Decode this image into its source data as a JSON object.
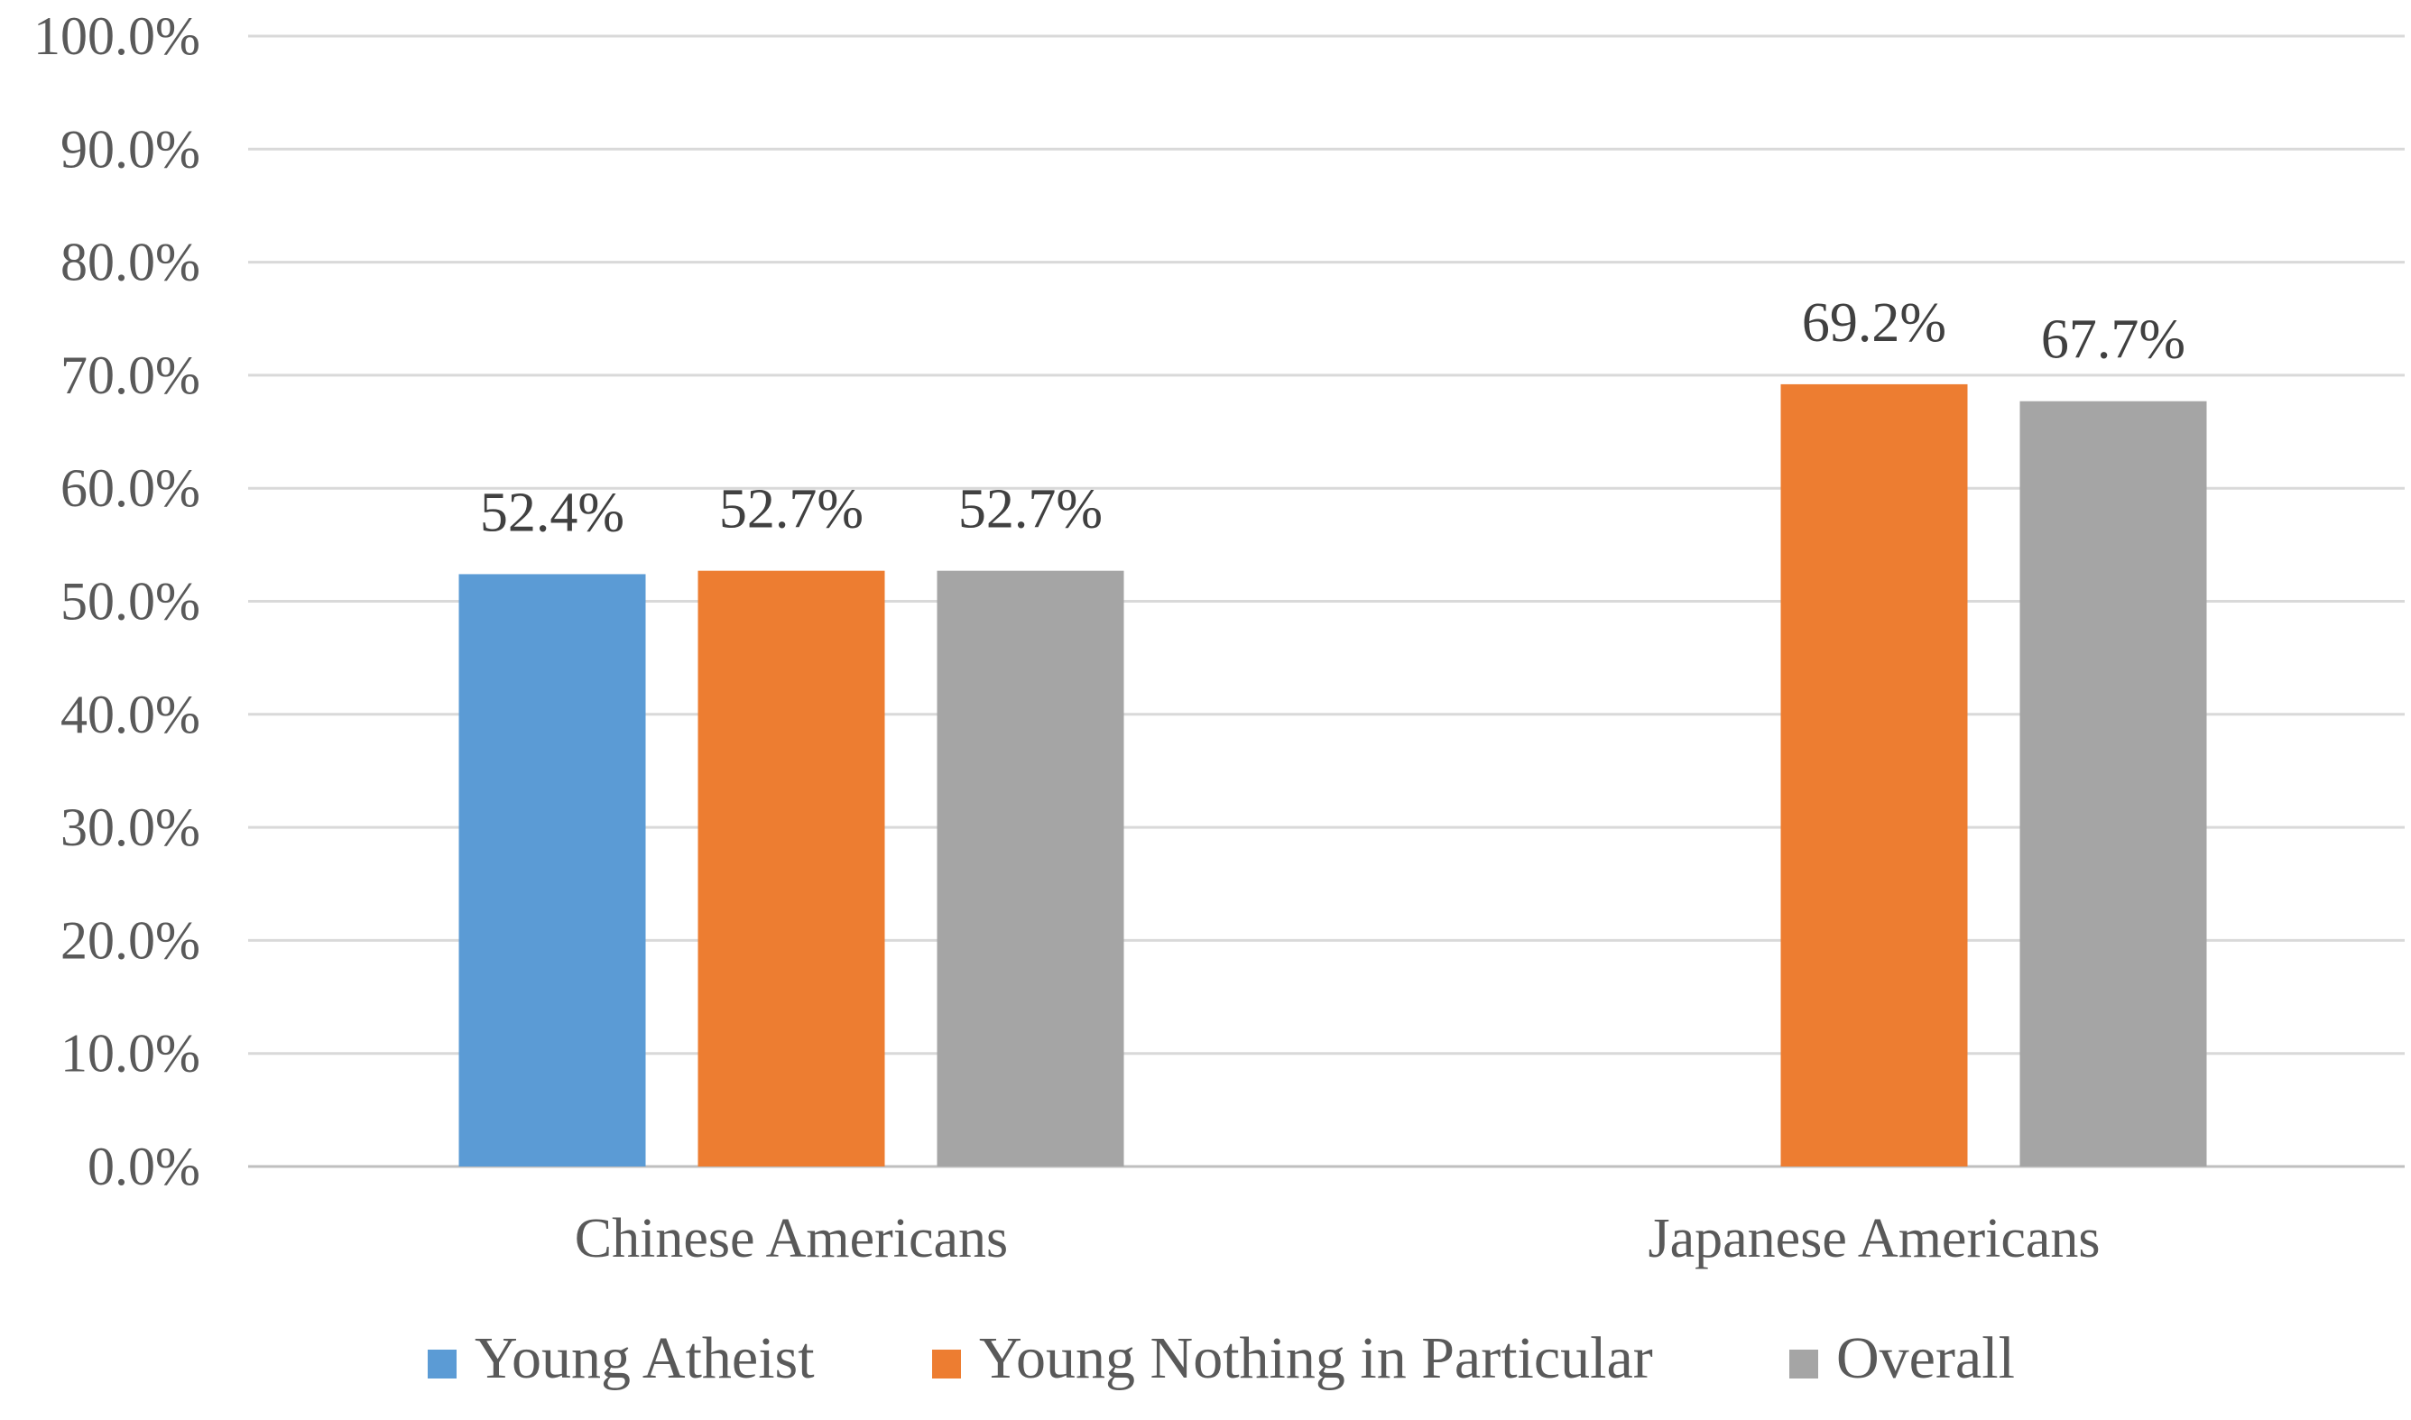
{
  "chart_data": {
    "type": "bar",
    "title": "",
    "xlabel": "",
    "ylabel": "",
    "ylim": [
      0,
      100
    ],
    "ytick_step": 10,
    "ytick_labels": [
      "0.0%",
      "10.0%",
      "20.0%",
      "30.0%",
      "40.0%",
      "50.0%",
      "60.0%",
      "70.0%",
      "80.0%",
      "90.0%",
      "100.0%"
    ],
    "grid": true,
    "legend_position": "bottom",
    "categories": [
      "Chinese Americans",
      "Japanese Americans"
    ],
    "series": [
      {
        "name": "Young Atheist",
        "color": "#5b9bd5",
        "values": [
          52.4,
          null
        ],
        "labels": [
          "52.4%",
          ""
        ]
      },
      {
        "name": "Young Nothing in Particular",
        "color": "#ed7d31",
        "values": [
          52.7,
          69.2
        ],
        "labels": [
          "52.7%",
          "69.2%"
        ]
      },
      {
        "name": "Overall",
        "color": "#a5a5a5",
        "values": [
          52.7,
          67.7
        ],
        "labels": [
          "52.7%",
          "67.7%"
        ]
      }
    ]
  }
}
